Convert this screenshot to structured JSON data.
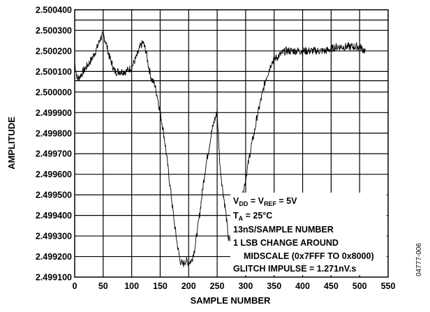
{
  "chart_data": {
    "type": "line",
    "xlabel": "SAMPLE NUMBER",
    "ylabel": "AMPLITUDE",
    "xlim": [
      0,
      550
    ],
    "ylim": [
      2.4991,
      2.5004
    ],
    "x_ticks": [
      "0",
      "50",
      "100",
      "150",
      "200",
      "250",
      "300",
      "350",
      "400",
      "450",
      "500",
      "550"
    ],
    "y_ticks": [
      "2.499100",
      "2.499200",
      "2.499300",
      "2.499400",
      "2.499500",
      "2.499600",
      "2.499700",
      "2.499800",
      "2.499900",
      "2.500000",
      "2.500100",
      "2.500200",
      "2.500300",
      "2.500400"
    ],
    "grid": true,
    "series": [
      {
        "x": [
          0,
          5,
          10,
          20,
          30,
          40,
          45,
          50,
          55,
          60,
          65,
          70,
          80,
          90,
          100,
          110,
          115,
          120,
          125,
          130,
          135,
          140,
          145,
          150,
          155,
          160,
          165,
          170,
          175,
          180,
          185,
          190,
          195,
          200,
          205,
          210,
          215,
          220,
          225,
          230,
          235,
          240,
          245,
          250,
          255,
          260,
          265,
          270,
          275,
          280,
          285,
          290,
          295,
          300,
          305,
          310,
          315,
          320,
          325,
          330,
          335,
          340,
          345,
          350,
          360,
          370,
          380,
          390,
          400,
          420,
          440,
          460,
          480,
          500,
          510
        ],
        "y": [
          2.50014,
          2.50006,
          2.50008,
          2.50012,
          2.50016,
          2.50022,
          2.50026,
          2.50028,
          2.50024,
          2.50018,
          2.50014,
          2.5001,
          2.5001,
          2.5001,
          2.50012,
          2.50018,
          2.50022,
          2.50024,
          2.5002,
          2.50012,
          2.50006,
          2.50004,
          2.49998,
          2.4999,
          2.49982,
          2.49972,
          2.4996,
          2.49948,
          2.49936,
          2.49926,
          2.49918,
          2.49916,
          2.49918,
          2.49917,
          2.49918,
          2.49923,
          2.49932,
          2.49942,
          2.49954,
          2.49964,
          2.49972,
          2.4998,
          2.49986,
          2.4999,
          2.49964,
          2.49952,
          2.49942,
          2.49928,
          2.49928,
          2.49932,
          2.49938,
          2.49944,
          2.4995,
          2.49958,
          2.49966,
          2.49974,
          2.4998,
          2.49988,
          2.49994,
          2.5,
          2.50006,
          2.5001,
          2.50014,
          2.50016,
          2.50018,
          2.5002,
          2.5002,
          2.5002,
          2.5002,
          2.5002,
          2.5002,
          2.50022,
          2.50022,
          2.50022,
          2.5002
        ]
      }
    ],
    "annotations": [
      "V_DD = V_REF = 5V",
      "T_A = 25°C",
      "13nS/SAMPLE NUMBER",
      "1 LSB CHANGE AROUND",
      "MIDSCALE (0x7FFF TO 0x8000)",
      "GLITCH IMPULSE = 1.271nV.s"
    ],
    "figure_id": "04777-006"
  }
}
